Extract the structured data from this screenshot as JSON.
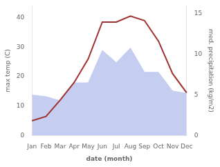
{
  "chart_data": {
    "type": "line",
    "categories": [
      "Jan",
      "Feb",
      "Mar",
      "Apr",
      "May",
      "Jun",
      "Jul",
      "Aug",
      "Sep",
      "Oct",
      "Nov",
      "Dec"
    ],
    "series": [
      {
        "type": "area",
        "color": "#c5cef0",
        "axis": "y2",
        "values": [
          5.0,
          4.8,
          4.3,
          6.5,
          6.5,
          10.5,
          9.0,
          10.8,
          7.8,
          7.8,
          5.5,
          5.2
        ]
      },
      {
        "type": "line",
        "color": "#a03030",
        "values": [
          5,
          6.5,
          12,
          18,
          26,
          38.5,
          38.5,
          40.5,
          39,
          32,
          21,
          14.5
        ]
      }
    ],
    "xlabel": "date (month)",
    "ylabel": "max temp (C)",
    "y2label": "med. precipitation (kg/m2)",
    "ylim": [
      0,
      44
    ],
    "yticks": [
      0,
      10,
      20,
      30,
      40
    ],
    "y2lim": [
      0,
      16
    ],
    "y2ticks": [
      0,
      5,
      10,
      15
    ],
    "grid": false
  }
}
